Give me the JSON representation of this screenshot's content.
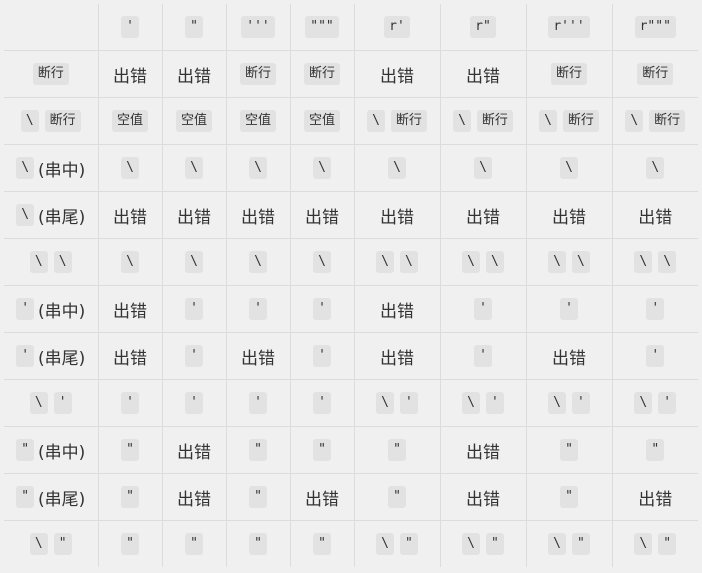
{
  "columns": [
    "'",
    "\"",
    "'''",
    "\"\"\"",
    "r'",
    "r\"",
    "r'''",
    "r\"\"\""
  ],
  "rows": [
    {
      "label": [
        {
          "code": "断行"
        }
      ],
      "cells": [
        [
          {
            "text": "出错"
          }
        ],
        [
          {
            "text": "出错"
          }
        ],
        [
          {
            "code": "断行"
          }
        ],
        [
          {
            "code": "断行"
          }
        ],
        [
          {
            "text": "出错"
          }
        ],
        [
          {
            "text": "出错"
          }
        ],
        [
          {
            "code": "断行"
          }
        ],
        [
          {
            "code": "断行"
          }
        ]
      ]
    },
    {
      "label": [
        {
          "code": "\\"
        },
        {
          "code": "断行"
        }
      ],
      "cells": [
        [
          {
            "code": "空值"
          }
        ],
        [
          {
            "code": "空值"
          }
        ],
        [
          {
            "code": "空值"
          }
        ],
        [
          {
            "code": "空值"
          }
        ],
        [
          {
            "code": "\\"
          },
          {
            "code": "断行"
          }
        ],
        [
          {
            "code": "\\"
          },
          {
            "code": "断行"
          }
        ],
        [
          {
            "code": "\\"
          },
          {
            "code": "断行"
          }
        ],
        [
          {
            "code": "\\"
          },
          {
            "code": "断行"
          }
        ]
      ]
    },
    {
      "label": [
        {
          "code": "\\"
        },
        {
          "text": "(串中)"
        }
      ],
      "cells": [
        [
          {
            "code": "\\"
          }
        ],
        [
          {
            "code": "\\"
          }
        ],
        [
          {
            "code": "\\"
          }
        ],
        [
          {
            "code": "\\"
          }
        ],
        [
          {
            "code": "\\"
          }
        ],
        [
          {
            "code": "\\"
          }
        ],
        [
          {
            "code": "\\"
          }
        ],
        [
          {
            "code": "\\"
          }
        ]
      ]
    },
    {
      "label": [
        {
          "code": "\\"
        },
        {
          "text": "(串尾)"
        }
      ],
      "cells": [
        [
          {
            "text": "出错"
          }
        ],
        [
          {
            "text": "出错"
          }
        ],
        [
          {
            "text": "出错"
          }
        ],
        [
          {
            "text": "出错"
          }
        ],
        [
          {
            "text": "出错"
          }
        ],
        [
          {
            "text": "出错"
          }
        ],
        [
          {
            "text": "出错"
          }
        ],
        [
          {
            "text": "出错"
          }
        ]
      ]
    },
    {
      "label": [
        {
          "code": "\\"
        },
        {
          "code": "\\"
        }
      ],
      "cells": [
        [
          {
            "code": "\\"
          }
        ],
        [
          {
            "code": "\\"
          }
        ],
        [
          {
            "code": "\\"
          }
        ],
        [
          {
            "code": "\\"
          }
        ],
        [
          {
            "code": "\\"
          },
          {
            "code": "\\"
          }
        ],
        [
          {
            "code": "\\"
          },
          {
            "code": "\\"
          }
        ],
        [
          {
            "code": "\\"
          },
          {
            "code": "\\"
          }
        ],
        [
          {
            "code": "\\"
          },
          {
            "code": "\\"
          }
        ]
      ]
    },
    {
      "label": [
        {
          "code": "'"
        },
        {
          "text": "(串中)"
        }
      ],
      "cells": [
        [
          {
            "text": "出错"
          }
        ],
        [
          {
            "code": "'"
          }
        ],
        [
          {
            "code": "'"
          }
        ],
        [
          {
            "code": "'"
          }
        ],
        [
          {
            "text": "出错"
          }
        ],
        [
          {
            "code": "'"
          }
        ],
        [
          {
            "code": "'"
          }
        ],
        [
          {
            "code": "'"
          }
        ]
      ]
    },
    {
      "label": [
        {
          "code": "'"
        },
        {
          "text": "(串尾)"
        }
      ],
      "cells": [
        [
          {
            "text": "出错"
          }
        ],
        [
          {
            "code": "'"
          }
        ],
        [
          {
            "text": "出错"
          }
        ],
        [
          {
            "code": "'"
          }
        ],
        [
          {
            "text": "出错"
          }
        ],
        [
          {
            "code": "'"
          }
        ],
        [
          {
            "text": "出错"
          }
        ],
        [
          {
            "code": "'"
          }
        ]
      ]
    },
    {
      "label": [
        {
          "code": "\\"
        },
        {
          "code": "'"
        }
      ],
      "cells": [
        [
          {
            "code": "'"
          }
        ],
        [
          {
            "code": "'"
          }
        ],
        [
          {
            "code": "'"
          }
        ],
        [
          {
            "code": "'"
          }
        ],
        [
          {
            "code": "\\"
          },
          {
            "code": "'"
          }
        ],
        [
          {
            "code": "\\"
          },
          {
            "code": "'"
          }
        ],
        [
          {
            "code": "\\"
          },
          {
            "code": "'"
          }
        ],
        [
          {
            "code": "\\"
          },
          {
            "code": "'"
          }
        ]
      ]
    },
    {
      "label": [
        {
          "code": "\""
        },
        {
          "text": "(串中)"
        }
      ],
      "cells": [
        [
          {
            "code": "\""
          }
        ],
        [
          {
            "text": "出错"
          }
        ],
        [
          {
            "code": "\""
          }
        ],
        [
          {
            "code": "\""
          }
        ],
        [
          {
            "code": "\""
          }
        ],
        [
          {
            "text": "出错"
          }
        ],
        [
          {
            "code": "\""
          }
        ],
        [
          {
            "code": "\""
          }
        ]
      ]
    },
    {
      "label": [
        {
          "code": "\""
        },
        {
          "text": "(串尾)"
        }
      ],
      "cells": [
        [
          {
            "code": "\""
          }
        ],
        [
          {
            "text": "出错"
          }
        ],
        [
          {
            "code": "\""
          }
        ],
        [
          {
            "text": "出错"
          }
        ],
        [
          {
            "code": "\""
          }
        ],
        [
          {
            "text": "出错"
          }
        ],
        [
          {
            "code": "\""
          }
        ],
        [
          {
            "text": "出错"
          }
        ]
      ]
    },
    {
      "label": [
        {
          "code": "\\"
        },
        {
          "code": "\""
        }
      ],
      "cells": [
        [
          {
            "code": "\""
          }
        ],
        [
          {
            "code": "\""
          }
        ],
        [
          {
            "code": "\""
          }
        ],
        [
          {
            "code": "\""
          }
        ],
        [
          {
            "code": "\\"
          },
          {
            "code": "\""
          }
        ],
        [
          {
            "code": "\\"
          },
          {
            "code": "\""
          }
        ],
        [
          {
            "code": "\\"
          },
          {
            "code": "\""
          }
        ],
        [
          {
            "code": "\\"
          },
          {
            "code": "\""
          }
        ]
      ]
    }
  ]
}
